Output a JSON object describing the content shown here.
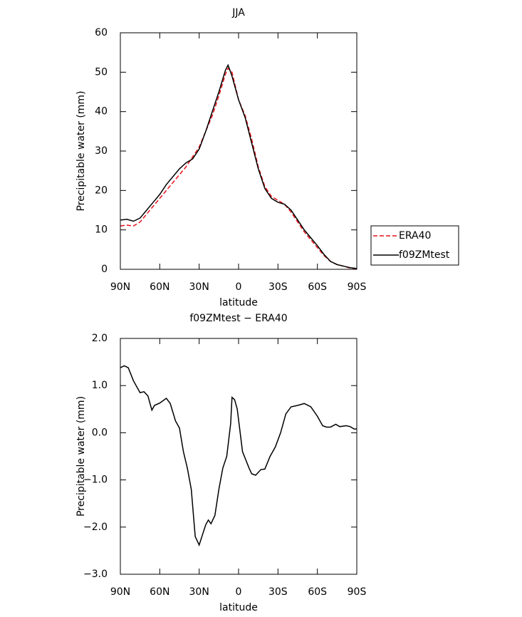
{
  "chart_data": [
    {
      "type": "line",
      "title": "JJA",
      "xlabel": "latitude",
      "ylabel": "Precipitable water (mm)",
      "x": [
        90,
        85,
        80,
        75,
        70,
        65,
        60,
        55,
        50,
        45,
        40,
        35,
        30,
        25,
        20,
        15,
        10,
        8,
        5,
        0,
        -5,
        -10,
        -15,
        -20,
        -25,
        -30,
        -35,
        -40,
        -45,
        -50,
        -55,
        -60,
        -65,
        -70,
        -75,
        -80,
        -85,
        -90
      ],
      "series": [
        {
          "name": "ERA40",
          "color": "#e8121b",
          "dash": true,
          "values": [
            11,
            11.2,
            11,
            12,
            14,
            16,
            18,
            20,
            22,
            24,
            26,
            28.5,
            31,
            35,
            39,
            44,
            49.5,
            51,
            50,
            43,
            39,
            33,
            26,
            21,
            18.5,
            17.5,
            16.5,
            14.5,
            12,
            9.5,
            7.5,
            5.5,
            3.5,
            2,
            1.2,
            0.8,
            0.3,
            0.2
          ]
        },
        {
          "name": "f09ZMtest",
          "color": "#000000",
          "dash": false,
          "values": [
            12.5,
            12.7,
            12.2,
            13,
            15,
            17,
            19,
            21.5,
            23.5,
            25.5,
            27,
            28,
            30.5,
            35,
            40,
            45,
            50.5,
            51.8,
            49,
            43,
            38.5,
            32,
            25.5,
            20.5,
            18,
            17,
            16.5,
            15,
            12.5,
            10,
            8,
            6,
            3.8,
            2,
            1.2,
            0.8,
            0.4,
            0.2
          ]
        }
      ],
      "xlim": [
        90,
        -90
      ],
      "xticks": [
        {
          "value": 90,
          "label": "90N"
        },
        {
          "value": 60,
          "label": "60N"
        },
        {
          "value": 30,
          "label": "30N"
        },
        0,
        {
          "value": -30,
          "label": "30S"
        },
        {
          "value": -60,
          "label": "60S"
        },
        {
          "value": -90,
          "label": "90S"
        }
      ],
      "ylim": [
        0,
        60
      ],
      "yticks": [
        0,
        10,
        20,
        30,
        40,
        50,
        60
      ],
      "legend": "right"
    },
    {
      "type": "line",
      "title": "f09ZMtest − ERA40",
      "xlabel": "latitude",
      "ylabel": "Precipitable water (mm)",
      "x": [
        90,
        87,
        84,
        80,
        75,
        72,
        69,
        66,
        64,
        60,
        55,
        52,
        48,
        45,
        42,
        39,
        36,
        33,
        30,
        25,
        23,
        21,
        18,
        15,
        12,
        9,
        6,
        5,
        3,
        1,
        -3,
        -8,
        -10,
        -13,
        -17,
        -20,
        -24,
        -28,
        -32,
        -36,
        -40,
        -45,
        -50,
        -55,
        -60,
        -64,
        -67,
        -70,
        -74,
        -77,
        -82,
        -85,
        -88,
        -90
      ],
      "series": [
        {
          "color": "#000000",
          "values": [
            1.38,
            1.42,
            1.38,
            1.1,
            0.85,
            0.87,
            0.78,
            0.48,
            0.58,
            0.63,
            0.73,
            0.62,
            0.25,
            0.1,
            -0.4,
            -0.75,
            -1.2,
            -2.2,
            -2.38,
            -1.95,
            -1.85,
            -1.93,
            -1.75,
            -1.2,
            -0.75,
            -0.5,
            0.2,
            0.75,
            0.7,
            0.5,
            -0.4,
            -0.75,
            -0.87,
            -0.9,
            -0.78,
            -0.77,
            -0.5,
            -0.3,
            0,
            0.4,
            0.55,
            0.58,
            0.62,
            0.55,
            0.35,
            0.15,
            0.12,
            0.12,
            0.18,
            0.13,
            0.15,
            0.13,
            0.08,
            0.08
          ]
        }
      ],
      "xlim": [
        90,
        -90
      ],
      "xticks": [
        {
          "value": 90,
          "label": "90N"
        },
        {
          "value": 60,
          "label": "60N"
        },
        {
          "value": 30,
          "label": "30N"
        },
        0,
        {
          "value": -30,
          "label": "30S"
        },
        {
          "value": -60,
          "label": "60S"
        },
        {
          "value": -90,
          "label": "90S"
        }
      ],
      "ylim": [
        -3,
        2
      ],
      "yticks": [
        {
          "value": -3,
          "label": "−3.0"
        },
        {
          "value": -2,
          "label": "−2.0"
        },
        {
          "value": -1,
          "label": "−1.0"
        },
        {
          "value": 0,
          "label": "0.0"
        },
        {
          "value": 1,
          "label": "1.0"
        },
        {
          "value": 2,
          "label": "2.0"
        }
      ]
    }
  ]
}
